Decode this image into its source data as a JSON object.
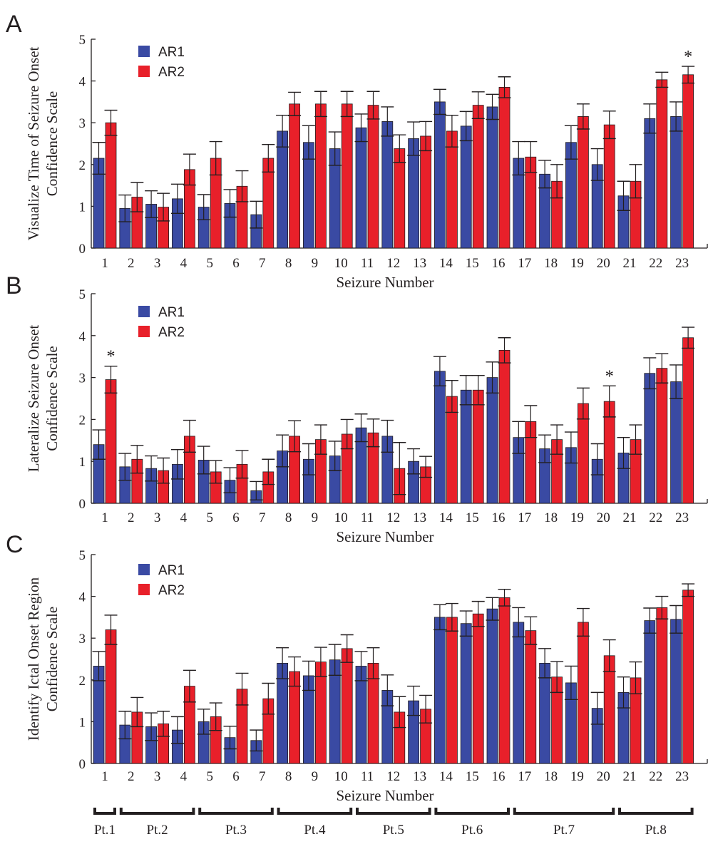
{
  "colors": {
    "AR1": "#3a4aa3",
    "AR2": "#e8202a",
    "ink": "#231f20"
  },
  "patients": [
    {
      "label": "Pt.1",
      "first": 1,
      "last": 1
    },
    {
      "label": "Pt.2",
      "first": 2,
      "last": 4
    },
    {
      "label": "Pt.3",
      "first": 5,
      "last": 7
    },
    {
      "label": "Pt.4",
      "first": 8,
      "last": 10
    },
    {
      "label": "Pt.5",
      "first": 11,
      "last": 13
    },
    {
      "label": "Pt.6",
      "first": 14,
      "last": 16
    },
    {
      "label": "Pt.7",
      "first": 17,
      "last": 20
    },
    {
      "label": "Pt.8",
      "first": 21,
      "last": 23
    }
  ],
  "chart_data": [
    {
      "panel": "A",
      "type": "bar",
      "xlabel": "Seizure Number",
      "ylabel": [
        "Visualize Time of Seizure Onset",
        "Confidence Scale"
      ],
      "ylim": [
        0,
        5
      ],
      "yticks": [
        "0",
        "1",
        "2",
        "3",
        "4",
        "5"
      ],
      "categories": [
        "1",
        "2",
        "3",
        "4",
        "5",
        "6",
        "7",
        "8",
        "9",
        "10",
        "11",
        "12",
        "13",
        "14",
        "15",
        "16",
        "17",
        "18",
        "19",
        "20",
        "21",
        "22",
        "23"
      ],
      "legend": [
        "AR1",
        "AR2"
      ],
      "significant": [
        "23"
      ],
      "series": [
        {
          "name": "AR1",
          "values": [
            2.15,
            0.95,
            1.05,
            1.18,
            0.98,
            1.07,
            0.8,
            2.8,
            2.53,
            2.38,
            2.88,
            3.03,
            2.62,
            3.5,
            2.92,
            3.38,
            2.15,
            1.77,
            2.53,
            2.0,
            1.25,
            3.1,
            3.15
          ],
          "errors": [
            0.38,
            0.32,
            0.32,
            0.35,
            0.3,
            0.33,
            0.32,
            0.38,
            0.4,
            0.4,
            0.33,
            0.35,
            0.4,
            0.3,
            0.35,
            0.3,
            0.4,
            0.33,
            0.4,
            0.38,
            0.35,
            0.35,
            0.35
          ]
        },
        {
          "name": "AR2",
          "values": [
            3.0,
            1.22,
            0.98,
            1.88,
            2.15,
            1.48,
            2.15,
            3.45,
            3.45,
            3.45,
            3.42,
            2.38,
            2.68,
            2.8,
            3.42,
            3.85,
            2.18,
            1.6,
            3.15,
            2.95,
            1.6,
            4.03,
            4.15
          ],
          "errors": [
            0.3,
            0.35,
            0.33,
            0.37,
            0.4,
            0.37,
            0.33,
            0.28,
            0.3,
            0.3,
            0.33,
            0.33,
            0.35,
            0.38,
            0.32,
            0.25,
            0.37,
            0.4,
            0.3,
            0.33,
            0.4,
            0.18,
            0.2
          ]
        }
      ]
    },
    {
      "panel": "B",
      "type": "bar",
      "xlabel": "Seizure Number",
      "ylabel": [
        "Lateralize Seizure Onset",
        "Confidence Scale"
      ],
      "ylim": [
        0,
        5
      ],
      "yticks": [
        "0",
        "1",
        "2",
        "3",
        "4",
        "5"
      ],
      "categories": [
        "1",
        "2",
        "3",
        "4",
        "5",
        "6",
        "7",
        "8",
        "9",
        "10",
        "11",
        "12",
        "13",
        "14",
        "15",
        "16",
        "17",
        "18",
        "19",
        "20",
        "21",
        "22",
        "23"
      ],
      "legend": [
        "AR1",
        "AR2"
      ],
      "significant": [
        "1",
        "20"
      ],
      "series": [
        {
          "name": "AR1",
          "values": [
            1.4,
            0.87,
            0.83,
            0.93,
            1.03,
            0.55,
            0.3,
            1.25,
            1.05,
            1.13,
            1.8,
            1.6,
            1.0,
            3.15,
            2.7,
            3.0,
            1.57,
            1.3,
            1.33,
            1.05,
            1.2,
            3.1,
            2.9
          ],
          "errors": [
            0.35,
            0.32,
            0.3,
            0.35,
            0.33,
            0.3,
            0.22,
            0.38,
            0.37,
            0.35,
            0.33,
            0.38,
            0.3,
            0.35,
            0.35,
            0.37,
            0.38,
            0.33,
            0.37,
            0.37,
            0.37,
            0.37,
            0.4
          ]
        },
        {
          "name": "AR2",
          "values": [
            2.95,
            1.05,
            0.78,
            1.6,
            0.75,
            0.93,
            0.75,
            1.6,
            1.52,
            1.65,
            1.68,
            0.83,
            0.87,
            2.55,
            2.7,
            3.65,
            1.95,
            1.52,
            2.38,
            2.43,
            1.52,
            3.22,
            3.95
          ],
          "errors": [
            0.32,
            0.33,
            0.3,
            0.38,
            0.27,
            0.33,
            0.3,
            0.37,
            0.35,
            0.35,
            0.33,
            0.62,
            0.25,
            0.38,
            0.35,
            0.3,
            0.38,
            0.35,
            0.37,
            0.37,
            0.35,
            0.35,
            0.25
          ]
        }
      ]
    },
    {
      "panel": "C",
      "type": "bar",
      "xlabel": "Seizure Number",
      "ylabel": [
        "Identify Ictal Onset Region",
        "Confidence Scale"
      ],
      "ylim": [
        0,
        5
      ],
      "yticks": [
        "0",
        "1",
        "2",
        "3",
        "4",
        "5"
      ],
      "categories": [
        "1",
        "2",
        "3",
        "4",
        "5",
        "6",
        "7",
        "8",
        "9",
        "10",
        "11",
        "12",
        "13",
        "14",
        "15",
        "16",
        "17",
        "18",
        "19",
        "20",
        "21",
        "22",
        "23"
      ],
      "legend": [
        "AR1",
        "AR2"
      ],
      "significant": [],
      "series": [
        {
          "name": "AR1",
          "values": [
            2.33,
            0.92,
            0.88,
            0.8,
            1.0,
            0.62,
            0.55,
            2.4,
            2.1,
            2.48,
            2.33,
            1.75,
            1.5,
            3.5,
            3.35,
            3.7,
            3.38,
            2.4,
            1.93,
            1.32,
            1.7,
            3.42,
            3.45
          ],
          "errors": [
            0.35,
            0.33,
            0.33,
            0.32,
            0.3,
            0.27,
            0.25,
            0.37,
            0.35,
            0.37,
            0.35,
            0.37,
            0.35,
            0.3,
            0.3,
            0.27,
            0.35,
            0.35,
            0.4,
            0.38,
            0.37,
            0.3,
            0.33
          ]
        },
        {
          "name": "AR2",
          "values": [
            3.2,
            1.23,
            0.95,
            1.85,
            1.12,
            1.78,
            1.55,
            2.2,
            2.43,
            2.75,
            2.4,
            1.23,
            1.3,
            3.5,
            3.58,
            3.97,
            3.18,
            2.07,
            3.38,
            2.58,
            2.05,
            3.73,
            4.15
          ],
          "errors": [
            0.35,
            0.35,
            0.3,
            0.38,
            0.33,
            0.38,
            0.37,
            0.35,
            0.35,
            0.33,
            0.37,
            0.37,
            0.33,
            0.33,
            0.3,
            0.2,
            0.33,
            0.37,
            0.33,
            0.38,
            0.38,
            0.27,
            0.15
          ]
        }
      ]
    }
  ]
}
